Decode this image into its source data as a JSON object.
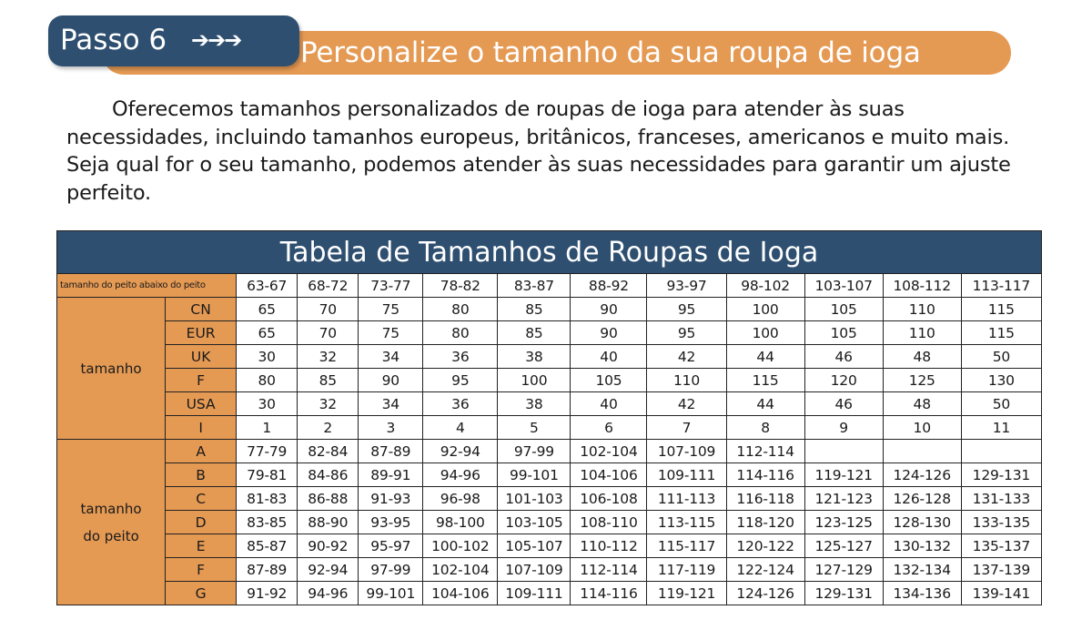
{
  "header": {
    "step_label": "Passo 6",
    "step_arrows": "➔➔➔",
    "title": "Personalize o tamanho da sua roupa de ioga"
  },
  "intro": {
    "text": "Oferecemos tamanhos personalizados de roupas de ioga para atender às suas necessidades, incluindo tamanhos europeus, britânicos, franceses, americanos e muito mais. Seja qual for o seu tamanho, podemos atender às suas necessidades para garantir um ajuste perfeito."
  },
  "table": {
    "title": "Tabela de Tamanhos de Roupas de Ioga",
    "header_label": "tamanho do peito abaixo do peito",
    "columns": [
      "63-67",
      "68-72",
      "73-77",
      "78-82",
      "83-87",
      "88-92",
      "93-97",
      "98-102",
      "103-107",
      "108-112",
      "113-117"
    ],
    "size_group": {
      "label": "tamanho",
      "rows": [
        {
          "name": "CN",
          "values": [
            "65",
            "70",
            "75",
            "80",
            "85",
            "90",
            "95",
            "100",
            "105",
            "110",
            "115"
          ]
        },
        {
          "name": "EUR",
          "values": [
            "65",
            "70",
            "75",
            "80",
            "85",
            "90",
            "95",
            "100",
            "105",
            "110",
            "115"
          ]
        },
        {
          "name": "UK",
          "values": [
            "30",
            "32",
            "34",
            "36",
            "38",
            "40",
            "42",
            "44",
            "46",
            "48",
            "50"
          ]
        },
        {
          "name": "F",
          "values": [
            "80",
            "85",
            "90",
            "95",
            "100",
            "105",
            "110",
            "115",
            "120",
            "125",
            "130"
          ]
        },
        {
          "name": "USA",
          "values": [
            "30",
            "32",
            "34",
            "36",
            "38",
            "40",
            "42",
            "44",
            "46",
            "48",
            "50"
          ]
        },
        {
          "name": "I",
          "values": [
            "1",
            "2",
            "3",
            "4",
            "5",
            "6",
            "7",
            "8",
            "9",
            "10",
            "11"
          ]
        }
      ]
    },
    "chest_group": {
      "label_line1": "tamanho",
      "label_line2": "do peito",
      "rows": [
        {
          "name": "A",
          "values": [
            "77-79",
            "82-84",
            "87-89",
            "92-94",
            "97-99",
            "102-104",
            "107-109",
            "112-114",
            "",
            "",
            ""
          ]
        },
        {
          "name": "B",
          "values": [
            "79-81",
            "84-86",
            "89-91",
            "94-96",
            "99-101",
            "104-106",
            "109-111",
            "114-116",
            "119-121",
            "124-126",
            "129-131"
          ]
        },
        {
          "name": "C",
          "values": [
            "81-83",
            "86-88",
            "91-93",
            "96-98",
            "101-103",
            "106-108",
            "111-113",
            "116-118",
            "121-123",
            "126-128",
            "131-133"
          ]
        },
        {
          "name": "D",
          "values": [
            "83-85",
            "88-90",
            "93-95",
            "98-100",
            "103-105",
            "108-110",
            "113-115",
            "118-120",
            "123-125",
            "128-130",
            "133-135"
          ]
        },
        {
          "name": "E",
          "values": [
            "85-87",
            "90-92",
            "95-97",
            "100-102",
            "105-107",
            "110-112",
            "115-117",
            "120-122",
            "125-127",
            "130-132",
            "135-137"
          ]
        },
        {
          "name": "F",
          "values": [
            "87-89",
            "92-94",
            "97-99",
            "102-104",
            "107-109",
            "112-114",
            "117-119",
            "122-124",
            "127-129",
            "132-134",
            "137-139"
          ]
        },
        {
          "name": "G",
          "values": [
            "91-92",
            "94-96",
            "99-101",
            "104-106",
            "109-111",
            "114-116",
            "119-121",
            "124-126",
            "129-131",
            "134-136",
            "139-141"
          ]
        }
      ]
    }
  },
  "colors": {
    "navy": "#2e4f70",
    "orange": "#e59a54"
  }
}
